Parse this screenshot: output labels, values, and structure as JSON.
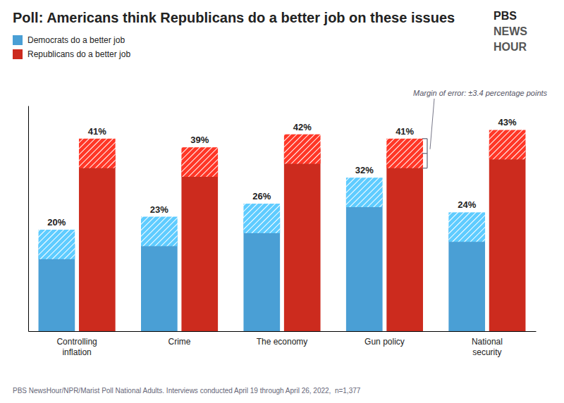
{
  "chart_data": {
    "type": "bar",
    "title": "Poll: Americans think Republicans do a better job on these issues",
    "categories": [
      "Controlling\ninflation",
      "Crime",
      "The economy",
      "Gun policy",
      "National\nsecurity"
    ],
    "series": [
      {
        "name": "Democrats do a better job",
        "color": "#4a9fd5",
        "values": [
          20,
          23,
          26,
          32,
          24
        ],
        "value_labels": [
          "20%",
          "23%",
          "26%",
          "32%",
          "24%"
        ]
      },
      {
        "name": "Republicans do a better job",
        "color": "#cc2b1e",
        "values": [
          41,
          39,
          42,
          41,
          43
        ],
        "value_labels": [
          "41%",
          "39%",
          "42%",
          "41%",
          "43%"
        ]
      }
    ],
    "margin_of_error": 3.4,
    "ylim": [
      0,
      52
    ],
    "grid": false,
    "legend": "upper left",
    "data_labels": true,
    "tick_labels": "x",
    "annotations": [
      "Margin of error: ±3.4 percentage points",
      "PBS",
      "NEWS",
      "HOUR",
      "PBS NewsHour/NPR/Marist Poll National Adults. Interviews conducted April 19 through April 26, 2022,  n=1,377"
    ]
  }
}
